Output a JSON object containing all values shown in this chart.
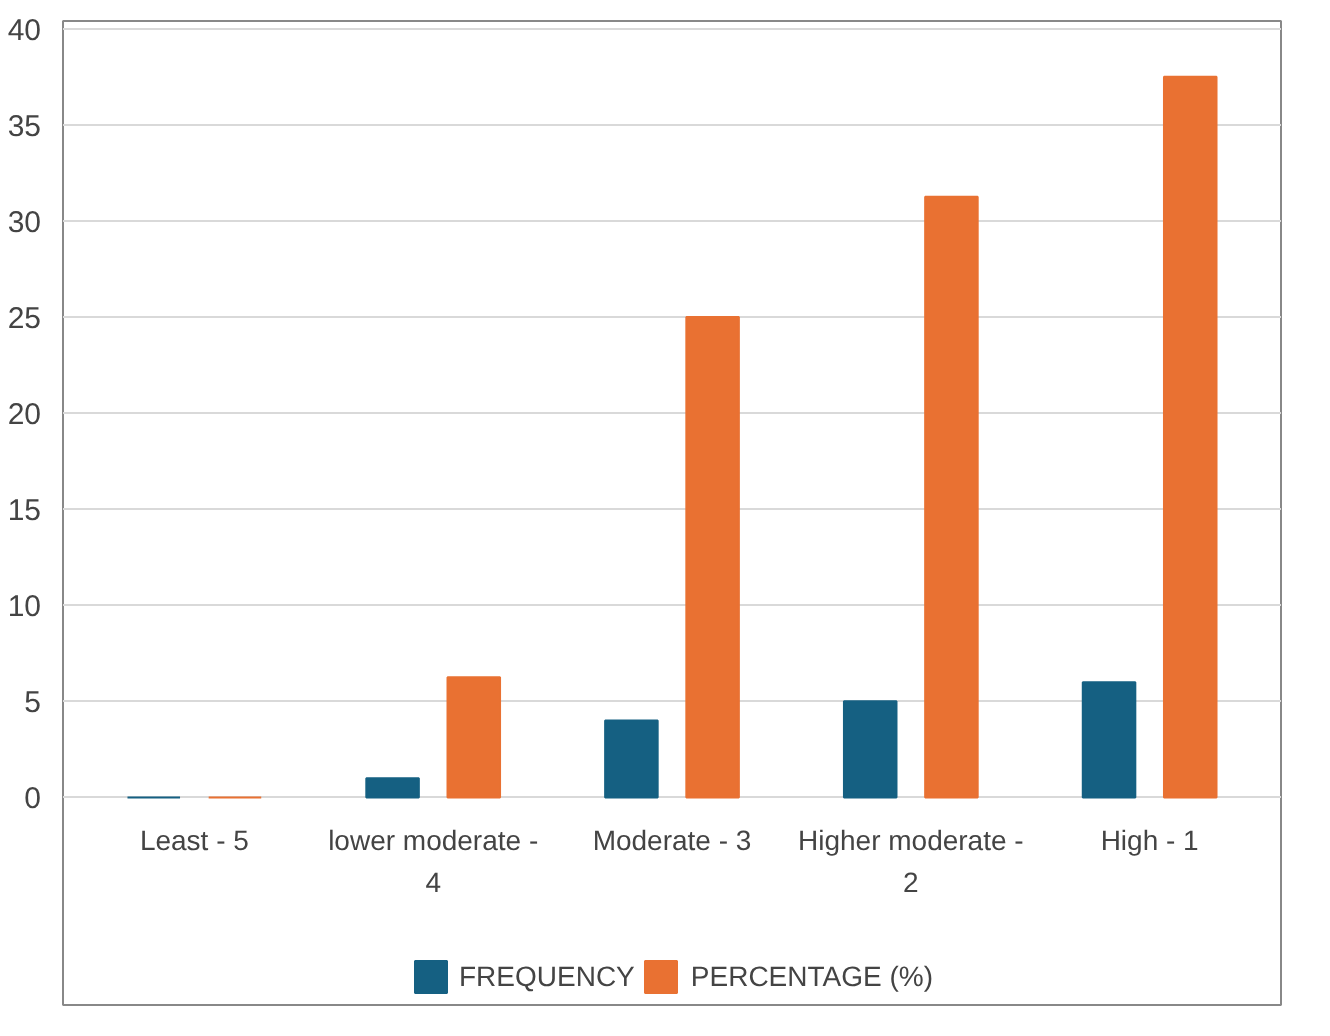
{
  "chart_data": {
    "type": "bar",
    "categories": [
      "Least - 5",
      "lower moderate - 4",
      "Moderate - 3",
      "Higher moderate - 2",
      "High - 1"
    ],
    "series": [
      {
        "name": "FREQUENCY",
        "color": "#156082",
        "values": [
          0,
          1,
          4,
          5,
          6
        ]
      },
      {
        "name": "PERCENTAGE (%)",
        "color": "#e97132",
        "values": [
          0,
          6.25,
          25,
          31.25,
          37.5
        ]
      }
    ],
    "ylim": [
      0,
      40
    ],
    "yticks": [
      0,
      5,
      10,
      15,
      20,
      25,
      30,
      35,
      40
    ],
    "grid": "y",
    "legend": "bottom"
  }
}
